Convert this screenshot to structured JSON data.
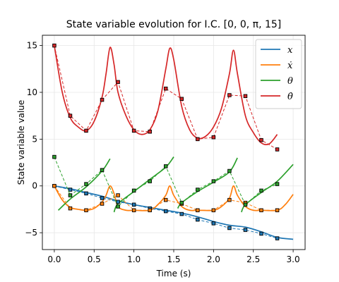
{
  "chart_data": {
    "type": "line",
    "title": "State variable evolution for I.C. [0, 0, π, 15]",
    "xlabel": "Time (s)",
    "ylabel": "State variable value",
    "xlim": [
      -0.15,
      3.15
    ],
    "ylim": [
      -6.8,
      16.1
    ],
    "xticks": [
      0.0,
      0.5,
      1.0,
      1.5,
      2.0,
      2.5,
      3.0
    ],
    "xtick_labels": [
      "0.0",
      "0.5",
      "1.0",
      "1.5",
      "2.0",
      "2.5",
      "3.0"
    ],
    "yticks": [
      -5,
      0,
      5,
      10,
      15
    ],
    "ytick_labels": [
      "−5",
      "0",
      "5",
      "10",
      "15"
    ],
    "grid": true,
    "legend_position": "top-right",
    "series": [
      {
        "name": "x",
        "color": "#1f77b4",
        "x": [
          0.0,
          0.2,
          0.4,
          0.6,
          0.8,
          1.0,
          1.2,
          1.4,
          1.6,
          1.8,
          2.0,
          2.2,
          2.4,
          2.6,
          2.8,
          3.0
        ],
        "y": [
          0.0,
          -0.3,
          -0.7,
          -1.1,
          -1.6,
          -2.0,
          -2.3,
          -2.6,
          -2.9,
          -3.3,
          -3.8,
          -4.2,
          -4.4,
          -4.9,
          -5.5,
          -5.7
        ]
      },
      {
        "name": "ẋ",
        "color": "#ff7f0e",
        "x": [
          0.0,
          0.1,
          0.2,
          0.3,
          0.4,
          0.5,
          0.6,
          0.65,
          0.7,
          0.75,
          0.8,
          0.9,
          1.0,
          1.2,
          1.3,
          1.4,
          1.45,
          1.5,
          1.6,
          1.7,
          1.8,
          2.0,
          2.1,
          2.2,
          2.25,
          2.3,
          2.4,
          2.5,
          2.6,
          2.8,
          2.9,
          3.0
        ],
        "y": [
          0.0,
          -1.5,
          -2.3,
          -2.5,
          -2.6,
          -2.4,
          -1.7,
          -1.0,
          0.0,
          -0.8,
          -2.2,
          -2.6,
          -2.6,
          -2.6,
          -2.0,
          -1.0,
          0.0,
          -1.0,
          -2.2,
          -2.6,
          -2.6,
          -2.6,
          -2.2,
          -1.3,
          0.0,
          -1.0,
          -2.2,
          -2.6,
          -2.6,
          -2.6,
          -2.0,
          -0.9
        ]
      },
      {
        "name": "θ",
        "color": "#2ca02c",
        "x": [
          0.05,
          0.2,
          0.4,
          0.6,
          0.7,
          0.75,
          0.8,
          1.0,
          1.2,
          1.4,
          1.5,
          1.55,
          1.6,
          1.8,
          2.0,
          2.2,
          2.3,
          2.35,
          2.4,
          2.6,
          2.8,
          3.0
        ],
        "y": [
          -2.6,
          -1.4,
          -0.1,
          1.6,
          2.9,
          -2.8,
          -1.9,
          -0.6,
          0.7,
          2.0,
          3.1,
          -2.4,
          -1.8,
          -0.6,
          0.4,
          1.5,
          3.0,
          -2.8,
          -2.0,
          -0.7,
          0.5,
          2.3
        ]
      },
      {
        "name": "θ̇",
        "color": "#d62728",
        "x": [
          0.0,
          0.1,
          0.2,
          0.3,
          0.4,
          0.5,
          0.6,
          0.65,
          0.7,
          0.75,
          0.8,
          0.9,
          1.0,
          1.1,
          1.2,
          1.3,
          1.4,
          1.45,
          1.5,
          1.6,
          1.7,
          1.8,
          1.9,
          2.0,
          2.1,
          2.2,
          2.25,
          2.3,
          2.4,
          2.5,
          2.6,
          2.7,
          2.8
        ],
        "y": [
          15.0,
          10.0,
          7.3,
          6.3,
          5.9,
          6.9,
          9.5,
          12.0,
          14.8,
          13.0,
          10.0,
          7.5,
          6.0,
          5.5,
          6.0,
          8.0,
          12.5,
          14.7,
          13.5,
          8.5,
          6.0,
          5.1,
          5.3,
          6.3,
          8.3,
          12.0,
          14.5,
          12.0,
          7.5,
          5.7,
          4.6,
          4.5,
          5.5
        ]
      }
    ],
    "sampled_series": [
      {
        "name": "x samples",
        "color": "#1f77b4",
        "x": [
          0.0,
          0.2,
          0.4,
          0.6,
          0.8,
          1.0,
          1.2,
          1.4,
          1.6,
          1.8,
          2.0,
          2.2,
          2.4,
          2.6,
          2.8
        ],
        "y": [
          0.0,
          -0.4,
          -0.8,
          -1.3,
          -1.7,
          -2.0,
          -2.4,
          -2.7,
          -3.0,
          -3.6,
          -4.0,
          -4.5,
          -4.7,
          -5.1,
          -5.6
        ]
      },
      {
        "name": "ẋ samples",
        "color": "#ff7f0e",
        "x": [
          0.0,
          0.2,
          0.4,
          0.6,
          0.8,
          1.0,
          1.2,
          1.4,
          1.6,
          1.8,
          2.0,
          2.2,
          2.4,
          2.6,
          2.8
        ],
        "y": [
          0.0,
          -2.4,
          -2.6,
          -1.9,
          -1.0,
          -2.6,
          -2.6,
          -1.5,
          -1.9,
          -2.6,
          -2.6,
          -1.5,
          -1.8,
          -2.6,
          -2.6
        ]
      },
      {
        "name": "θ samples",
        "color": "#2ca02c",
        "x": [
          0.0,
          0.2,
          0.4,
          0.6,
          0.8,
          1.0,
          1.2,
          1.4,
          1.6,
          1.8,
          2.0,
          2.2,
          2.4,
          2.6,
          2.8
        ],
        "y": [
          3.1,
          -1.0,
          0.2,
          1.7,
          -2.2,
          -0.5,
          0.5,
          2.1,
          -1.8,
          -0.4,
          0.5,
          1.6,
          -2.0,
          -0.5,
          0.2
        ]
      },
      {
        "name": "θ̇ samples",
        "color": "#d62728",
        "x": [
          0.0,
          0.2,
          0.4,
          0.6,
          0.8,
          1.0,
          1.2,
          1.4,
          1.6,
          1.8,
          2.0,
          2.2,
          2.4,
          2.6,
          2.8
        ],
        "y": [
          15.0,
          7.5,
          5.9,
          9.2,
          11.1,
          5.9,
          5.8,
          10.4,
          9.3,
          5.0,
          5.2,
          9.7,
          9.6,
          4.9,
          3.9
        ]
      }
    ],
    "legend": [
      {
        "label": "x",
        "color": "#1f77b4"
      },
      {
        "label": "ẋ",
        "color": "#ff7f0e"
      },
      {
        "label": "θ",
        "color": "#2ca02c"
      },
      {
        "label": "θ̇",
        "color": "#d62728"
      }
    ]
  }
}
